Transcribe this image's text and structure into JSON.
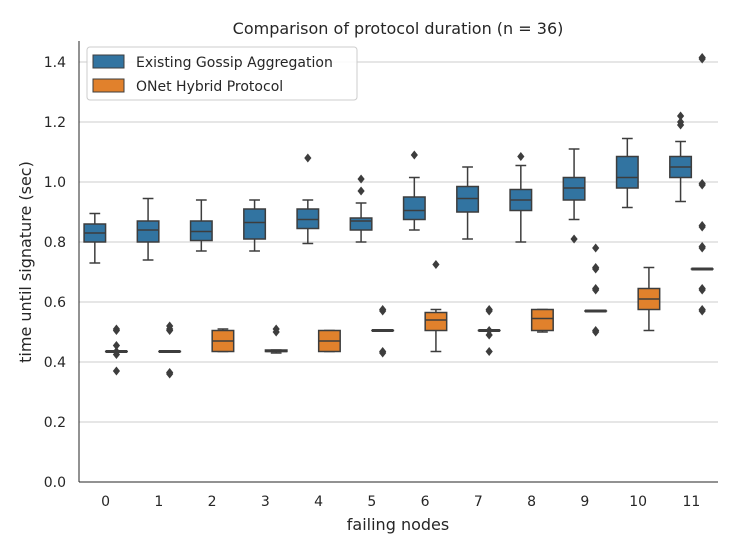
{
  "chart_data": {
    "type": "box",
    "title": "Comparison of protocol duration (n = 36)",
    "xlabel": "failing nodes",
    "ylabel": "time until signature (sec)",
    "ylim": [
      0,
      1.47
    ],
    "yticks": [
      0.0,
      0.2,
      0.4,
      0.6,
      0.8,
      1.0,
      1.2,
      1.4
    ],
    "ytick_labels": [
      "0.0",
      "0.2",
      "0.4",
      "0.6",
      "0.8",
      "1.0",
      "1.2",
      "1.4"
    ],
    "categories": [
      "0",
      "1",
      "2",
      "3",
      "4",
      "5",
      "6",
      "7",
      "8",
      "9",
      "10",
      "11"
    ],
    "grid": true,
    "legend_position": "top-left",
    "series": [
      {
        "name": "Existing Gossip Aggregation",
        "color": "#3274a1",
        "boxes": [
          {
            "whisker_low": 0.73,
            "q1": 0.8,
            "median": 0.83,
            "q3": 0.86,
            "whisker_high": 0.895,
            "outliers": []
          },
          {
            "whisker_low": 0.74,
            "q1": 0.8,
            "median": 0.84,
            "q3": 0.87,
            "whisker_high": 0.945,
            "outliers": []
          },
          {
            "whisker_low": 0.77,
            "q1": 0.805,
            "median": 0.835,
            "q3": 0.87,
            "whisker_high": 0.94,
            "outliers": []
          },
          {
            "whisker_low": 0.77,
            "q1": 0.81,
            "median": 0.865,
            "q3": 0.91,
            "whisker_high": 0.94,
            "outliers": []
          },
          {
            "whisker_low": 0.795,
            "q1": 0.845,
            "median": 0.875,
            "q3": 0.91,
            "whisker_high": 0.94,
            "outliers": [
              1.08
            ]
          },
          {
            "whisker_low": 0.8,
            "q1": 0.84,
            "median": 0.87,
            "q3": 0.88,
            "whisker_high": 0.93,
            "outliers": [
              0.97,
              1.01
            ]
          },
          {
            "whisker_low": 0.84,
            "q1": 0.875,
            "median": 0.905,
            "q3": 0.95,
            "whisker_high": 1.015,
            "outliers": [
              1.09
            ]
          },
          {
            "whisker_low": 0.81,
            "q1": 0.9,
            "median": 0.945,
            "q3": 0.985,
            "whisker_high": 1.05,
            "outliers": []
          },
          {
            "whisker_low": 0.8,
            "q1": 0.905,
            "median": 0.94,
            "q3": 0.975,
            "whisker_high": 1.055,
            "outliers": [
              1.085
            ]
          },
          {
            "whisker_low": 0.875,
            "q1": 0.94,
            "median": 0.98,
            "q3": 1.015,
            "whisker_high": 1.11,
            "outliers": [
              0.81
            ]
          },
          {
            "whisker_low": 0.915,
            "q1": 0.98,
            "median": 1.015,
            "q3": 1.085,
            "whisker_high": 1.145,
            "outliers": []
          },
          {
            "whisker_low": 0.935,
            "q1": 1.015,
            "median": 1.05,
            "q3": 1.085,
            "whisker_high": 1.135,
            "outliers": [
              1.19,
              1.2,
              1.22
            ]
          }
        ]
      },
      {
        "name": "ONet Hybrid Protocol",
        "color": "#e1812c",
        "boxes": [
          {
            "whisker_low": 0.435,
            "q1": 0.435,
            "median": 0.435,
            "q3": 0.435,
            "whisker_high": 0.435,
            "outliers": [
              0.37,
              0.425,
              0.435,
              0.455,
              0.505,
              0.51
            ]
          },
          {
            "whisker_low": 0.435,
            "q1": 0.435,
            "median": 0.435,
            "q3": 0.435,
            "whisker_high": 0.435,
            "outliers": [
              0.36,
              0.365,
              0.505,
              0.51,
              0.52
            ]
          },
          {
            "whisker_low": 0.435,
            "q1": 0.435,
            "median": 0.47,
            "q3": 0.505,
            "whisker_high": 0.51,
            "outliers": []
          },
          {
            "whisker_low": 0.43,
            "q1": 0.435,
            "median": 0.435,
            "q3": 0.44,
            "whisker_high": 0.44,
            "outliers": [
              0.5,
              0.51
            ]
          },
          {
            "whisker_low": 0.435,
            "q1": 0.435,
            "median": 0.47,
            "q3": 0.505,
            "whisker_high": 0.505,
            "outliers": []
          },
          {
            "whisker_low": 0.505,
            "q1": 0.505,
            "median": 0.505,
            "q3": 0.505,
            "whisker_high": 0.505,
            "outliers": [
              0.43,
              0.435,
              0.57,
              0.575
            ]
          },
          {
            "whisker_low": 0.435,
            "q1": 0.505,
            "median": 0.54,
            "q3": 0.565,
            "whisker_high": 0.575,
            "outliers": [
              0.725
            ]
          },
          {
            "whisker_low": 0.505,
            "q1": 0.505,
            "median": 0.505,
            "q3": 0.505,
            "whisker_high": 0.505,
            "outliers": [
              0.435,
              0.49,
              0.505,
              0.57,
              0.575
            ]
          },
          {
            "whisker_low": 0.5,
            "q1": 0.505,
            "median": 0.545,
            "q3": 0.575,
            "whisker_high": 0.575,
            "outliers": []
          },
          {
            "whisker_low": 0.57,
            "q1": 0.57,
            "median": 0.57,
            "q3": 0.57,
            "whisker_high": 0.57,
            "outliers": [
              0.5,
              0.505,
              0.64,
              0.645,
              0.71,
              0.715,
              0.78
            ]
          },
          {
            "whisker_low": 0.505,
            "q1": 0.575,
            "median": 0.61,
            "q3": 0.645,
            "whisker_high": 0.715,
            "outliers": []
          },
          {
            "whisker_low": 0.71,
            "q1": 0.71,
            "median": 0.71,
            "q3": 0.71,
            "whisker_high": 0.71,
            "outliers": [
              0.57,
              0.575,
              0.64,
              0.645,
              0.78,
              0.785,
              0.85,
              0.855,
              0.99,
              0.995,
              1.41,
              1.415
            ]
          }
        ]
      }
    ]
  }
}
